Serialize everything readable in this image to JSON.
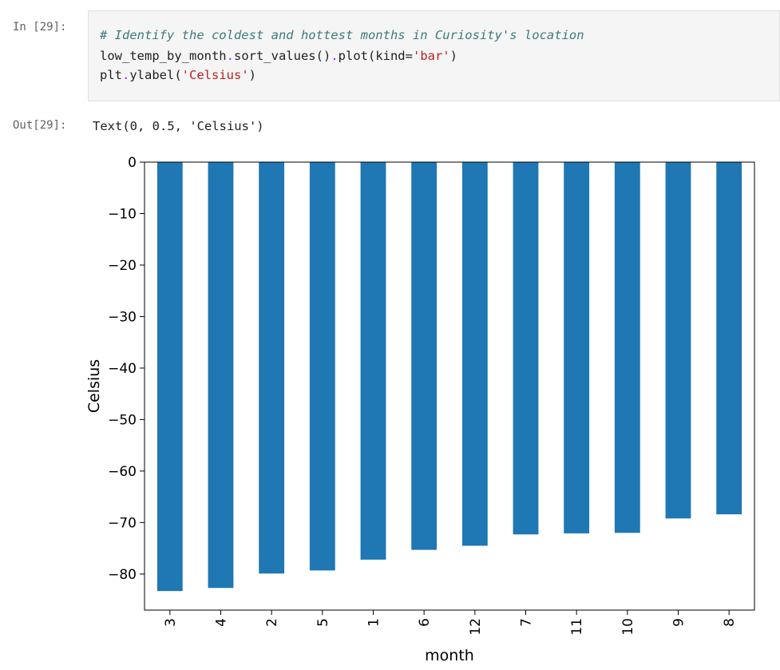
{
  "cell": {
    "in_prompt": "In [29]:",
    "out_prompt": "Out[29]:",
    "code": {
      "comment": "# Identify the coldest and hottest months in Curiosity's location",
      "line2_a": "low_temp_by_month",
      "line2_b": "sort_values()",
      "line2_c": "plot(kind=",
      "line2_str": "'bar'",
      "line2_end": ")",
      "line3_a": "plt",
      "line3_b": "ylabel(",
      "line3_str": "'Celsius'",
      "line3_end": ")"
    },
    "output_text": "Text(0, 0.5, 'Celsius')"
  },
  "colors": {
    "bar": "#1f77b4",
    "axis": "#000000"
  },
  "chart_data": {
    "type": "bar",
    "title": "",
    "xlabel": "month",
    "ylabel": "Celsius",
    "categories": [
      "3",
      "4",
      "2",
      "5",
      "1",
      "6",
      "12",
      "7",
      "11",
      "10",
      "9",
      "8"
    ],
    "values": [
      -83.3,
      -82.7,
      -79.9,
      -79.3,
      -77.2,
      -75.3,
      -74.5,
      -72.3,
      -72.1,
      -72.0,
      -69.2,
      -68.4
    ],
    "ylim": [
      -87,
      0
    ],
    "yticks": [
      0,
      -10,
      -20,
      -30,
      -40,
      -50,
      -60,
      -70,
      -80
    ],
    "ytick_labels": [
      "0",
      "−10",
      "−20",
      "−30",
      "−40",
      "−50",
      "−60",
      "−70",
      "−80"
    ],
    "grid": false
  }
}
